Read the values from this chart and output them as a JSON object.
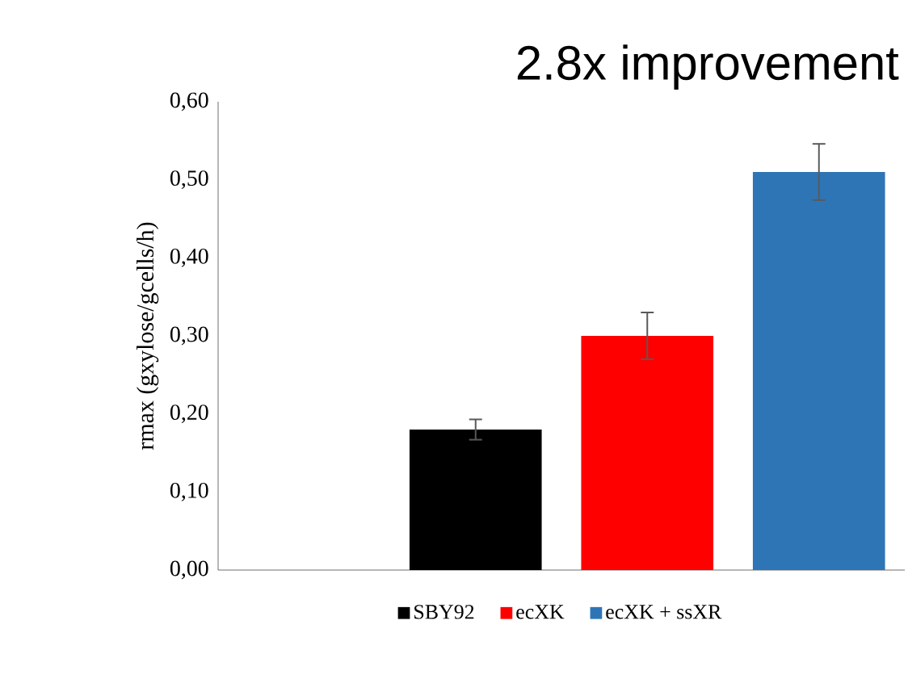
{
  "chart_data": {
    "type": "bar",
    "title": "2.8x improvement",
    "ylabel": "rmax (gxylose/gcells/h)",
    "categories": [
      null,
      null,
      null,
      null
    ],
    "series": [
      {
        "name": "SBY92",
        "color": "#000000",
        "values": [
          null,
          0.18,
          null,
          null
        ],
        "errors": [
          null,
          0.013,
          null,
          null
        ]
      },
      {
        "name": "ecXK",
        "color": "#ff0000",
        "values": [
          null,
          null,
          0.3,
          null
        ],
        "errors": [
          null,
          null,
          0.03,
          null
        ]
      },
      {
        "name": "ecXK + ssXR",
        "color": "#2e75b6",
        "values": [
          null,
          null,
          null,
          0.51
        ],
        "errors": [
          null,
          null,
          null,
          0.036
        ]
      }
    ],
    "ylim": [
      0,
      0.6
    ],
    "yticks": [
      {
        "value": 0,
        "label": "0,00"
      },
      {
        "value": 0.1,
        "label": "0,10"
      },
      {
        "value": 0.2,
        "label": "0,20"
      },
      {
        "value": 0.3,
        "label": "0,30"
      },
      {
        "value": 0.4,
        "label": "0,40"
      },
      {
        "value": 0.5,
        "label": "0,50"
      },
      {
        "value": 0.6,
        "label": "0,60"
      }
    ],
    "legend": "bottom",
    "grid": false
  }
}
